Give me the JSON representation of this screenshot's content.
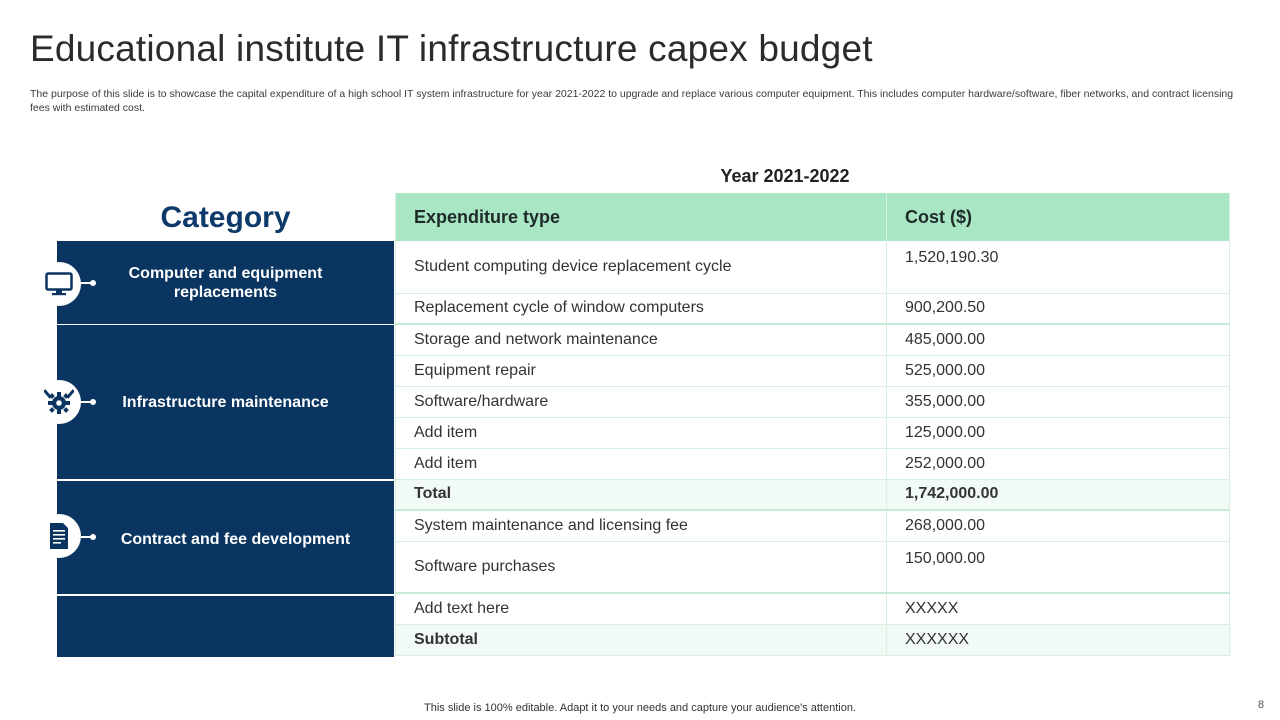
{
  "slide": {
    "title": "Educational institute IT infrastructure capex budget",
    "description": "The purpose of this slide is to showcase the capital expenditure of a high school IT system infrastructure for year 2021-2022 to upgrade and replace various computer equipment. This includes computer hardware/software, fiber networks, and contract licensing fees with estimated cost.",
    "year_label": "Year 2021-2022",
    "category_heading": "Category",
    "footer": "This slide is 100% editable. Adapt it to your needs and capture your audience's attention.",
    "page_number": "8"
  },
  "categories": [
    {
      "label": "Computer and equipment replacements",
      "icon": "monitor-icon"
    },
    {
      "label": "Infrastructure maintenance",
      "icon": "gear-tools-icon"
    },
    {
      "label": "Contract and fee development",
      "icon": "document-icon"
    },
    {
      "label": ""
    }
  ],
  "table": {
    "headers": [
      "Expenditure type",
      "Cost ($)"
    ],
    "rows": [
      [
        "Student computing device replacement cycle",
        "1,520,190.30"
      ],
      [
        "Replacement cycle of window computers",
        "900,200.50"
      ],
      [
        "Storage and network maintenance",
        "485,000.00"
      ],
      [
        "Equipment repair",
        "525,000.00"
      ],
      [
        "Software/hardware",
        "355,000.00"
      ],
      [
        "Add item",
        "125,000.00"
      ],
      [
        "Add item",
        "252,000.00"
      ],
      [
        "Total",
        "1,742,000.00"
      ],
      [
        "System maintenance and licensing fee",
        "268,000.00"
      ],
      [
        "Software purchases",
        "150,000.00"
      ],
      [
        "Add text here",
        "XXXXX"
      ],
      [
        "Subtotal",
        "XXXXXX"
      ]
    ]
  },
  "colors": {
    "category_bg": "#0b3561",
    "header_bg": "#a8e6c4",
    "heading_text": "#0d3a6a"
  }
}
